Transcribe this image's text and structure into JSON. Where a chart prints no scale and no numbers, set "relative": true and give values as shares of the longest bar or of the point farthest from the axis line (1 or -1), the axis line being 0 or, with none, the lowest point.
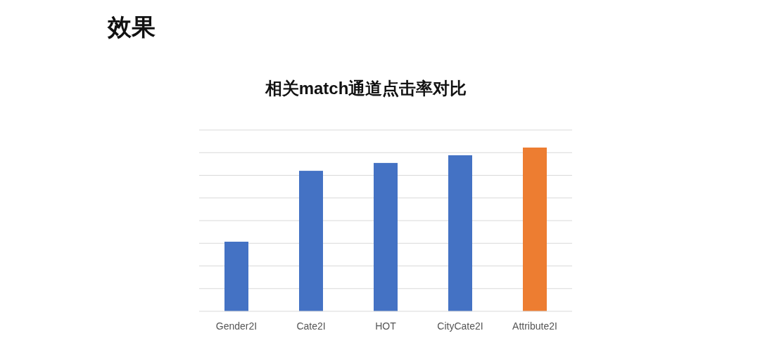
{
  "chart_data": {
    "type": "bar",
    "title": "相关match通道点击率对比",
    "annotations": [
      "效果"
    ],
    "categories": [
      "Gender2I",
      "Cate2I",
      "HOT",
      "CityCate2I",
      "Attribute2I"
    ],
    "values": [
      0.425,
      0.858,
      0.906,
      0.953,
      1
    ],
    "colors": [
      "#4472c4",
      "#4472c4",
      "#4472c4",
      "#4472c4",
      "#ed7d31"
    ],
    "relative": true,
    "grid": "y"
  }
}
